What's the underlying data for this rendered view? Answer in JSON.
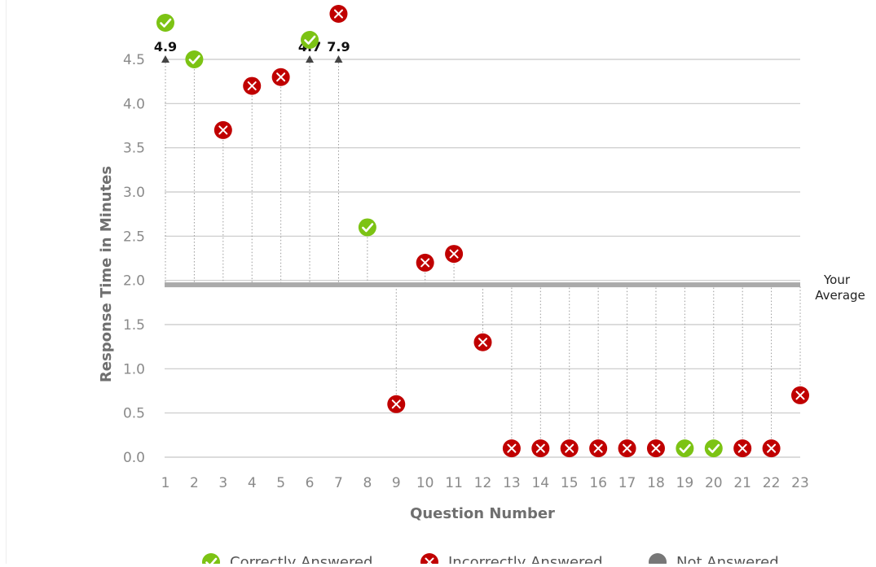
{
  "chart_data": {
    "type": "scatter",
    "xlabel": "Question Number",
    "ylabel": "Response Time in Minutes",
    "ylim": [
      0,
      4.5
    ],
    "y_ticks": [
      "0.0",
      "0.5",
      "1.0",
      "1.5",
      "2.0",
      "2.5",
      "3.0",
      "3.5",
      "4.0",
      "4.5"
    ],
    "average": {
      "value": 1.95,
      "label_line1": "Your",
      "label_line2": "Average"
    },
    "legend_position": "bottom",
    "legend": [
      {
        "key": "correct",
        "label": "Correctly Answered",
        "color": "#7cc314",
        "icon": "check-circle-icon"
      },
      {
        "key": "incorrect",
        "label": "Incorrectly Answered",
        "color": "#c00000",
        "icon": "x-circle-icon"
      },
      {
        "key": "none",
        "label": "Not Answered",
        "color": "#777777",
        "icon": "gray-circle-icon"
      }
    ],
    "points": [
      {
        "q": "1",
        "time": 4.9,
        "status": "correct",
        "label": "4.9"
      },
      {
        "q": "2",
        "time": 4.5,
        "status": "correct"
      },
      {
        "q": "3",
        "time": 3.7,
        "status": "incorrect"
      },
      {
        "q": "4",
        "time": 4.2,
        "status": "incorrect"
      },
      {
        "q": "5",
        "time": 4.3,
        "status": "incorrect"
      },
      {
        "q": "6",
        "time": 4.7,
        "status": "correct",
        "label": "4.7"
      },
      {
        "q": "7",
        "time": 7.9,
        "status": "incorrect",
        "label": "7.9"
      },
      {
        "q": "8",
        "time": 2.6,
        "status": "correct"
      },
      {
        "q": "9",
        "time": 0.6,
        "status": "incorrect"
      },
      {
        "q": "10",
        "time": 2.2,
        "status": "incorrect"
      },
      {
        "q": "11",
        "time": 2.3,
        "status": "incorrect"
      },
      {
        "q": "12",
        "time": 1.3,
        "status": "incorrect"
      },
      {
        "q": "13",
        "time": 0.1,
        "status": "incorrect"
      },
      {
        "q": "14",
        "time": 0.1,
        "status": "incorrect"
      },
      {
        "q": "15",
        "time": 0.1,
        "status": "incorrect"
      },
      {
        "q": "16",
        "time": 0.1,
        "status": "incorrect"
      },
      {
        "q": "17",
        "time": 0.1,
        "status": "incorrect"
      },
      {
        "q": "18",
        "time": 0.1,
        "status": "incorrect"
      },
      {
        "q": "19",
        "time": 0.1,
        "status": "correct"
      },
      {
        "q": "20",
        "time": 0.1,
        "status": "correct"
      },
      {
        "q": "21",
        "time": 0.1,
        "status": "incorrect"
      },
      {
        "q": "22",
        "time": 0.1,
        "status": "incorrect"
      },
      {
        "q": "23",
        "time": 0.7,
        "status": "incorrect"
      }
    ]
  }
}
